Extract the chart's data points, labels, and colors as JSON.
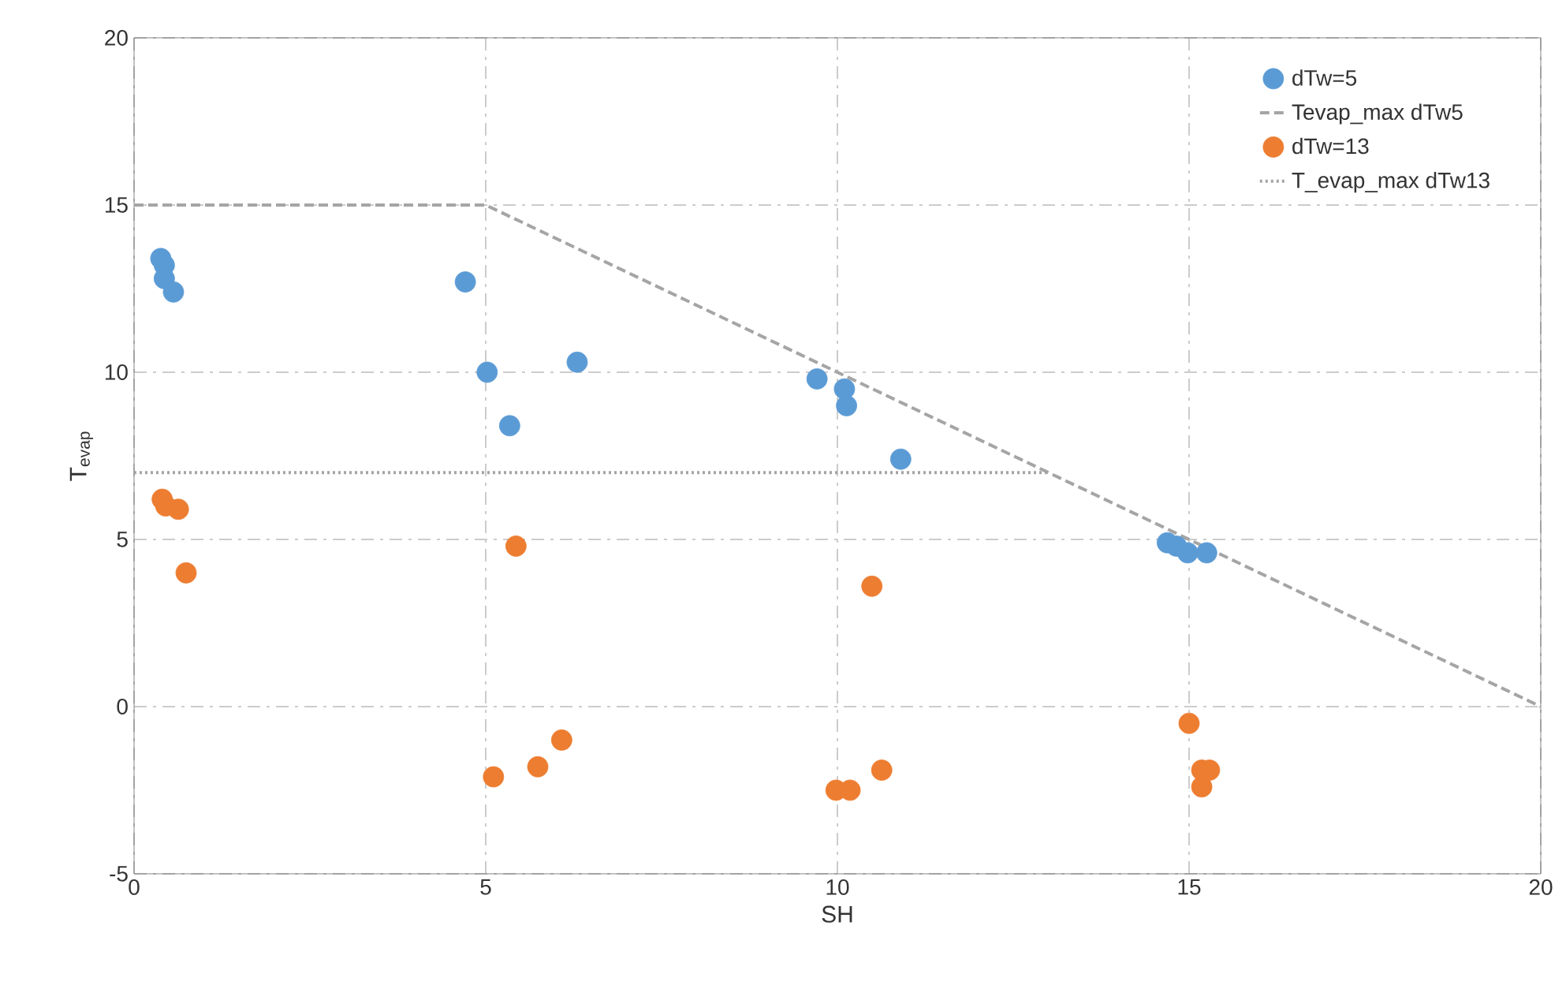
{
  "chart_data": {
    "type": "scatter",
    "xlabel": "SH",
    "ylabel": "T$_{evap}$",
    "xlim": [
      0,
      20
    ],
    "ylim": [
      -5,
      20
    ],
    "xticks": [
      0,
      5,
      10,
      15,
      20
    ],
    "yticks": [
      -5,
      0,
      5,
      10,
      15,
      20
    ],
    "grid": true,
    "legend": "top right",
    "series": [
      {
        "name": "dTw=5",
        "marker": "circle",
        "color": "#5b9bd5",
        "x": [
          0.38,
          0.43,
          0.43,
          0.56,
          4.71,
          5.02,
          5.34,
          6.3,
          9.71,
          10.1,
          10.13,
          10.9,
          14.69,
          14.82,
          14.98,
          15.25
        ],
        "values": [
          13.4,
          13.2,
          12.8,
          12.4,
          12.7,
          10.0,
          8.4,
          10.3,
          9.8,
          9.5,
          9.0,
          7.4,
          4.9,
          4.8,
          4.6,
          4.6
        ]
      },
      {
        "name": "Tevap_max dTw5",
        "type": "line",
        "color": "#a5a5a5",
        "line_style": "dashed",
        "marker": "none",
        "x": [
          0,
          5,
          20
        ],
        "values": [
          15,
          15,
          0
        ]
      },
      {
        "name": "dTw=13",
        "marker": "circle",
        "color": "#ed7d31",
        "x": [
          0.4,
          0.45,
          0.63,
          0.74,
          5.43,
          5.11,
          5.74,
          6.08,
          9.98,
          10.18,
          10.63,
          10.49,
          15.0,
          15.18,
          15.29,
          15.18
        ],
        "values": [
          6.2,
          6.0,
          5.9,
          4.0,
          4.8,
          -2.1,
          -1.8,
          -1.0,
          -2.5,
          -2.5,
          -1.9,
          3.6,
          -0.5,
          -1.9,
          -1.9,
          -2.4
        ]
      },
      {
        "name": "T_evap_max dTw13",
        "type": "line",
        "color": "#a5a5a5",
        "line_style": "dotted",
        "marker": "none",
        "x": [
          0,
          13
        ],
        "values": [
          7,
          7
        ]
      }
    ]
  }
}
